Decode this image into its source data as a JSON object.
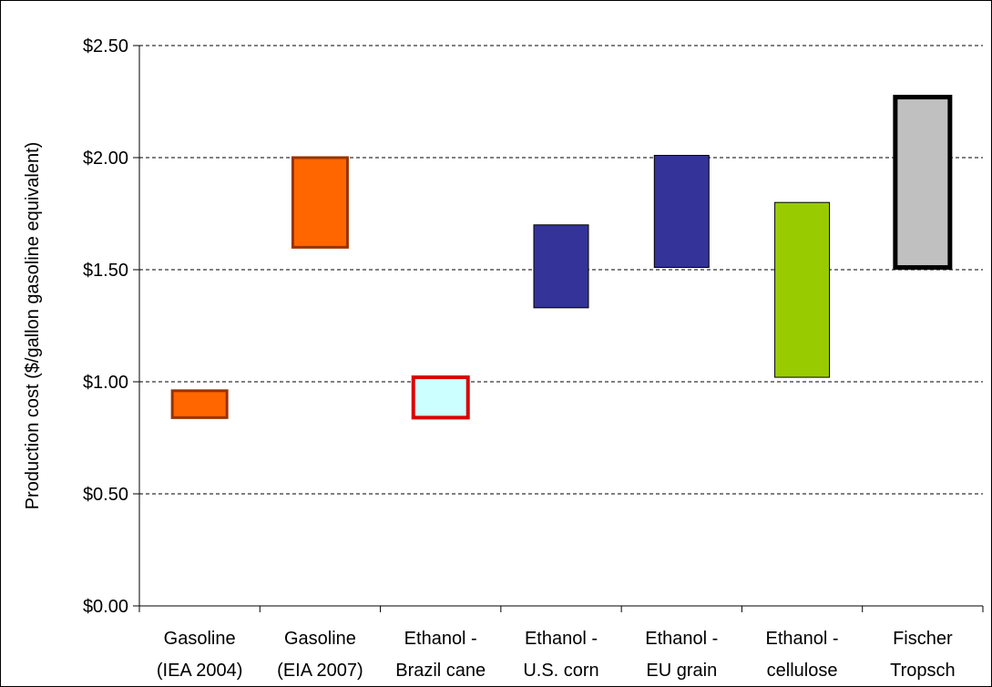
{
  "chart_data": {
    "type": "bar",
    "subtype": "floating-range",
    "title": "",
    "ylabel": "Production cost ($/gallon gasoline equivalent)",
    "xlabel": "",
    "ylim": [
      0,
      2.5
    ],
    "yticks": [
      {
        "value": 0.0,
        "label": "$0.00"
      },
      {
        "value": 0.5,
        "label": "$0.50"
      },
      {
        "value": 1.0,
        "label": "$1.00"
      },
      {
        "value": 1.5,
        "label": "$1.50"
      },
      {
        "value": 2.0,
        "label": "$2.00"
      },
      {
        "value": 2.5,
        "label": "$2.50"
      }
    ],
    "grid": "horizontal-dashed",
    "legend": "none",
    "categories": [
      {
        "line1": "Gasoline",
        "line2": "(IEA 2004)",
        "low": 0.84,
        "high": 0.96,
        "fill": "#FF6600",
        "stroke": "#993300",
        "stroke_width": 3
      },
      {
        "line1": "Gasoline",
        "line2": "(EIA 2007)",
        "low": 1.6,
        "high": 2.0,
        "fill": "#FF6600",
        "stroke": "#993300",
        "stroke_width": 3
      },
      {
        "line1": "Ethanol -",
        "line2": "Brazil cane",
        "low": 0.84,
        "high": 1.02,
        "fill": "#CCFFFF",
        "stroke": "#DD0000",
        "stroke_width": 4
      },
      {
        "line1": "Ethanol -",
        "line2": "U.S. corn",
        "low": 1.33,
        "high": 1.7,
        "fill": "#333399",
        "stroke": "#000000",
        "stroke_width": 1
      },
      {
        "line1": "Ethanol -",
        "line2": "EU grain",
        "low": 1.51,
        "high": 2.01,
        "fill": "#333399",
        "stroke": "#000000",
        "stroke_width": 1
      },
      {
        "line1": "Ethanol -",
        "line2": "cellulose",
        "low": 1.02,
        "high": 1.8,
        "fill": "#99CC00",
        "stroke": "#000000",
        "stroke_width": 1
      },
      {
        "line1": "Fischer",
        "line2": "Tropsch",
        "low": 1.51,
        "high": 2.27,
        "fill": "#C0C0C0",
        "stroke": "#000000",
        "stroke_width": 5
      }
    ]
  }
}
